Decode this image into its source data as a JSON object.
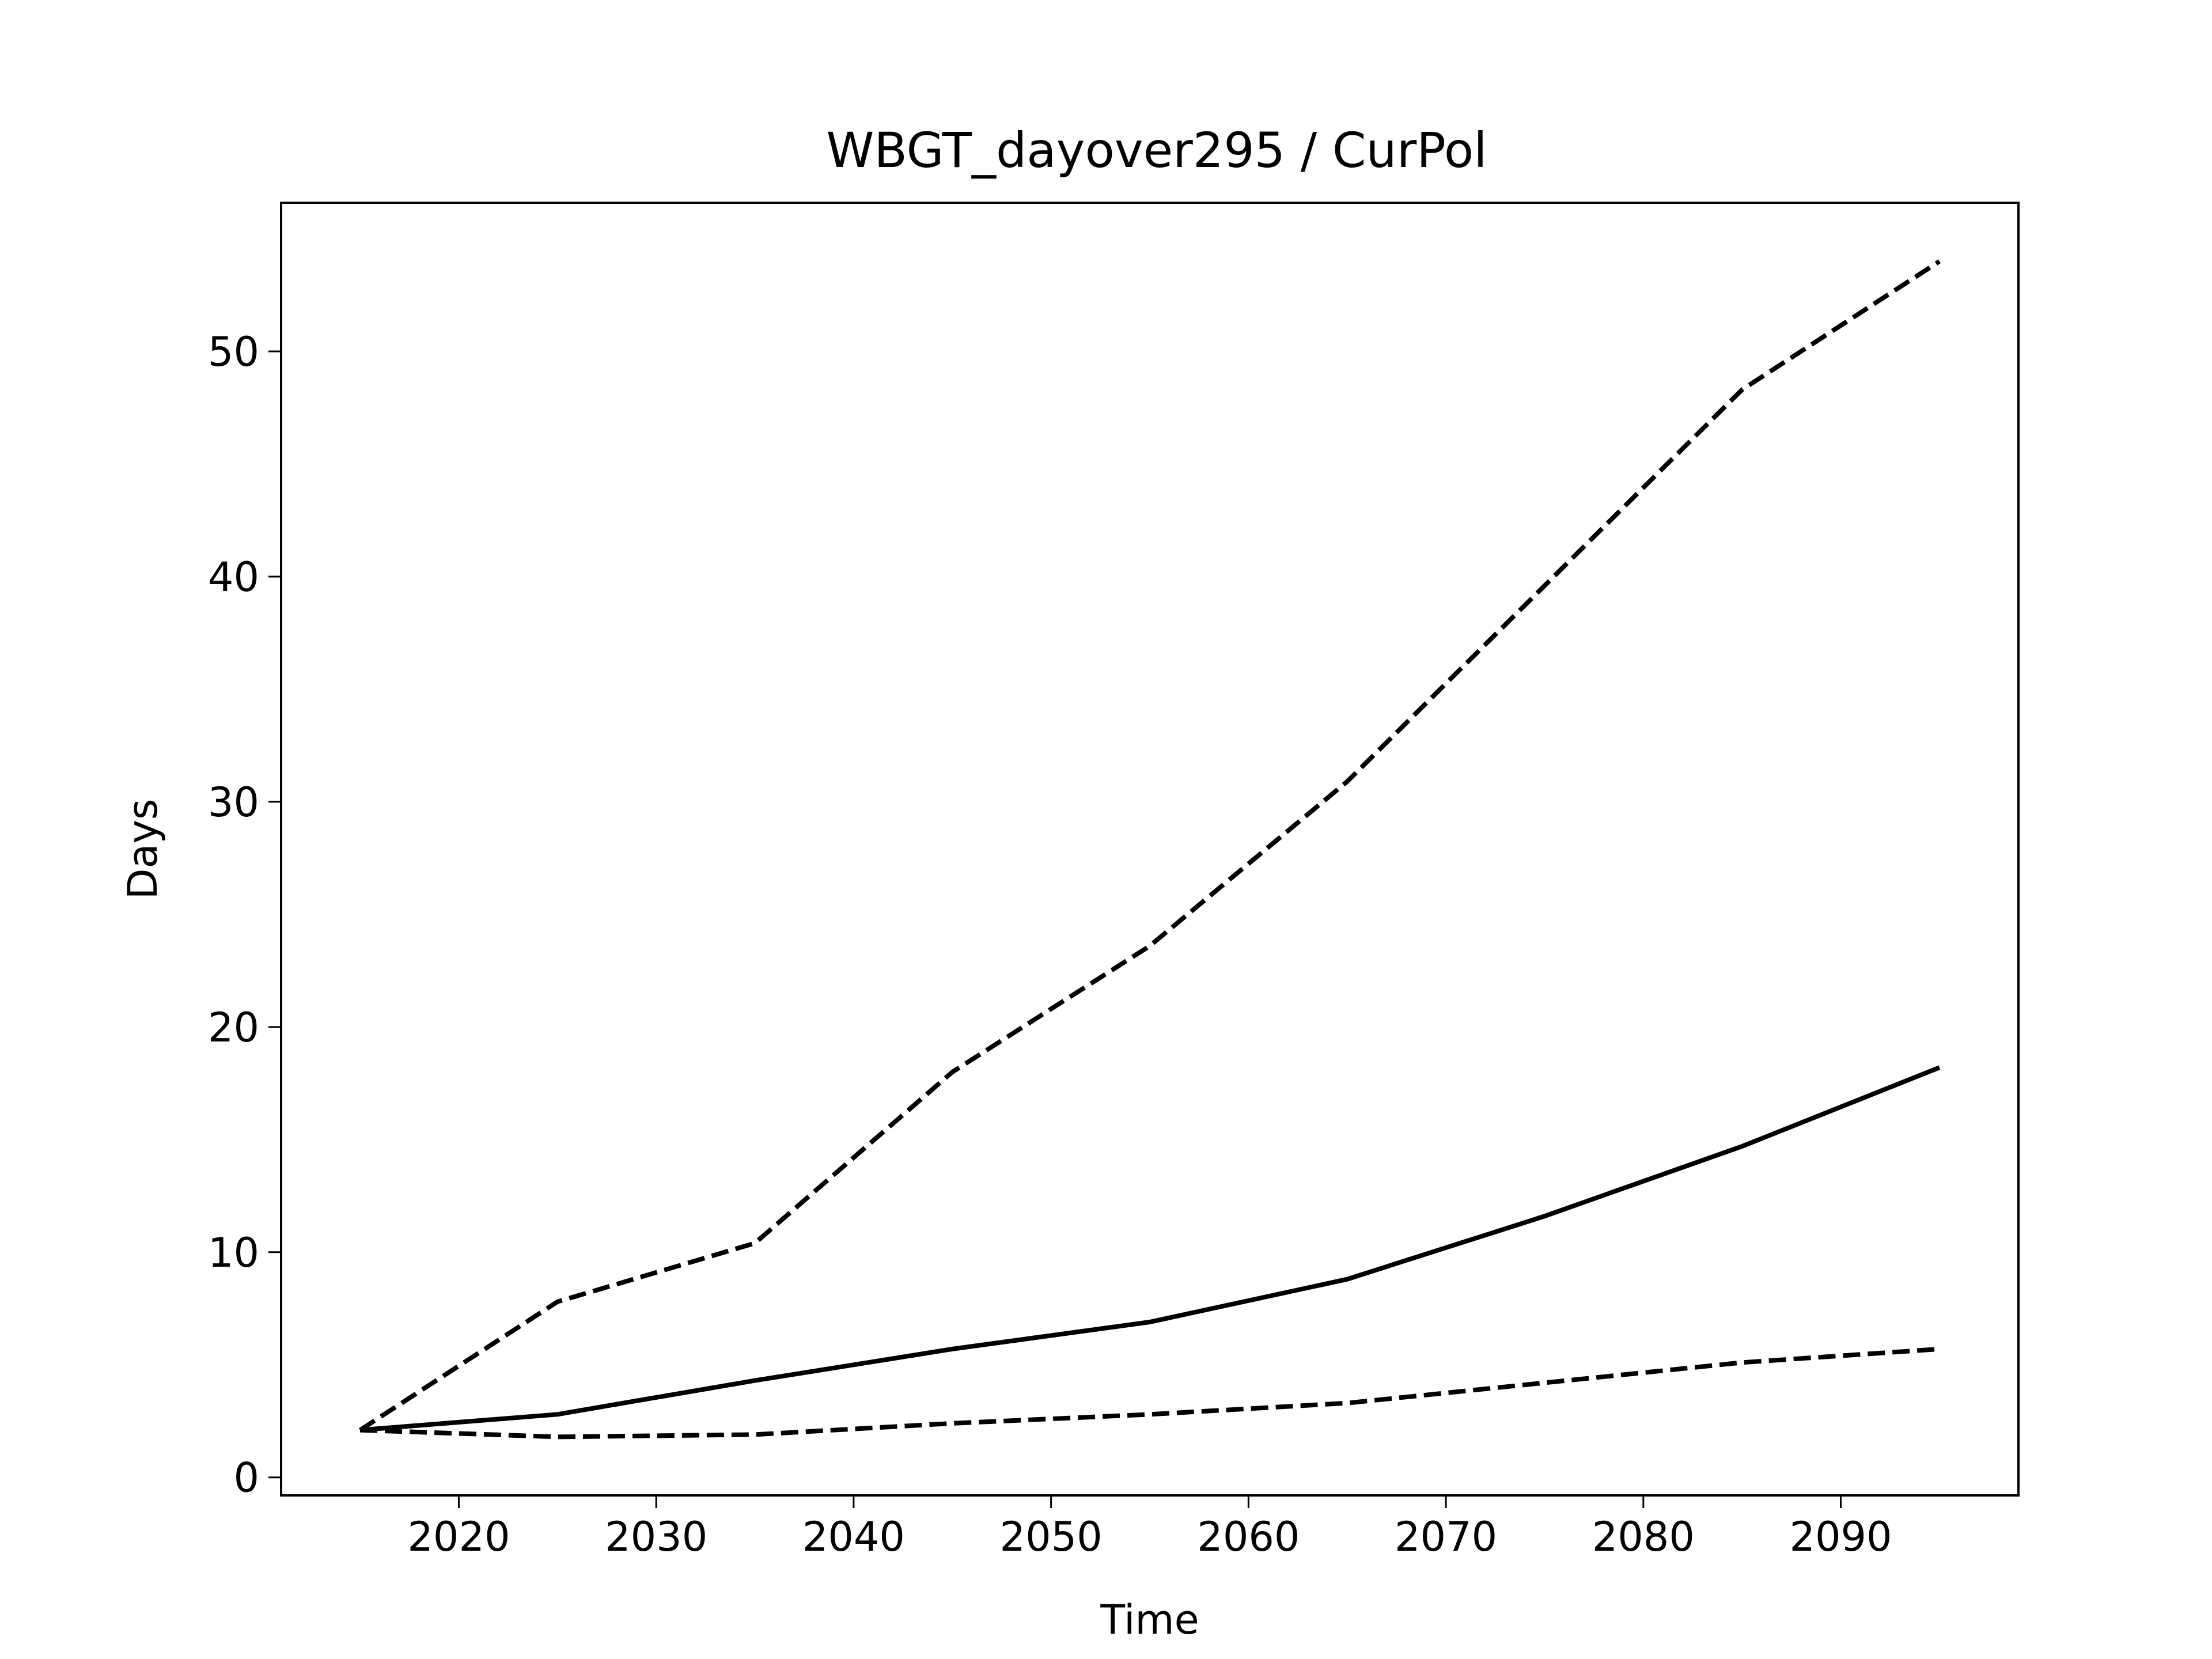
{
  "chart_data": {
    "type": "line",
    "title": "WBGT_dayover295 / CurPol",
    "xlabel": "Time",
    "ylabel": "Days",
    "xlim": [
      2011,
      2099
    ],
    "ylim": [
      -0.8,
      56.6
    ],
    "xticks": [
      2020,
      2030,
      2040,
      2050,
      2060,
      2070,
      2080,
      2090
    ],
    "yticks": [
      0,
      10,
      20,
      30,
      40,
      50
    ],
    "grid": false,
    "legend": "none",
    "series": [
      {
        "style": "dashed",
        "color": "#000000",
        "x": [
          2015,
          2025,
          2035,
          2045,
          2055,
          2065,
          2075,
          2085,
          2095
        ],
        "y": [
          2.1,
          7.8,
          10.4,
          18.0,
          23.6,
          30.9,
          39.6,
          48.3,
          54.0
        ]
      },
      {
        "style": "solid",
        "color": "#000000",
        "x": [
          2015,
          2025,
          2035,
          2045,
          2055,
          2065,
          2075,
          2085,
          2095
        ],
        "y": [
          2.1,
          2.8,
          4.3,
          5.7,
          6.9,
          8.8,
          11.6,
          14.7,
          18.2
        ]
      },
      {
        "style": "dashed",
        "color": "#000000",
        "x": [
          2015,
          2025,
          2035,
          2045,
          2055,
          2065,
          2075,
          2085,
          2095
        ],
        "y": [
          2.1,
          1.8,
          1.9,
          2.4,
          2.8,
          3.3,
          4.2,
          5.1,
          5.7
        ]
      }
    ]
  }
}
